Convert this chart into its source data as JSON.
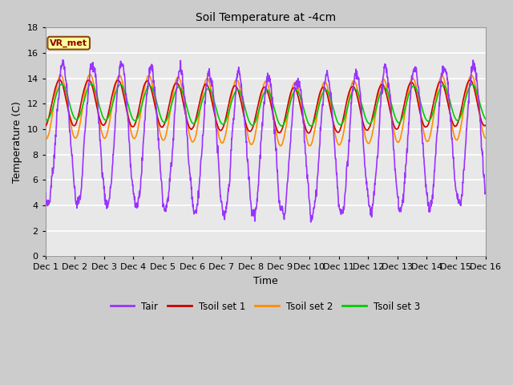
{
  "title": "Soil Temperature at -4cm",
  "xlabel": "Time",
  "ylabel": "Temperature (C)",
  "ylim": [
    0,
    18
  ],
  "yticks": [
    0,
    2,
    4,
    6,
    8,
    10,
    12,
    14,
    16,
    18
  ],
  "xtick_labels": [
    "Dec 1",
    "Dec 2",
    "Dec 3",
    "Dec 4",
    "Dec 5",
    "Dec 6",
    "Dec 7",
    "Dec 8",
    "Dec 9",
    "Dec 10",
    "Dec 11",
    "Dec 12",
    "Dec 13",
    "Dec 14",
    "Dec 15",
    "Dec 16"
  ],
  "annotation": "VR_met",
  "annotation_color": "#8B0000",
  "annotation_bg": "#FFFF99",
  "colors": {
    "Tair": "#9933FF",
    "Tsoil1": "#CC0000",
    "Tsoil2": "#FF8C00",
    "Tsoil3": "#00CC00"
  },
  "legend_labels": [
    "Tair",
    "Tsoil set 1",
    "Tsoil set 2",
    "Tsoil set 3"
  ],
  "figsize": [
    6.4,
    4.8
  ],
  "dpi": 100,
  "linewidth": 1.2,
  "n_points": 1440,
  "seed": 7
}
